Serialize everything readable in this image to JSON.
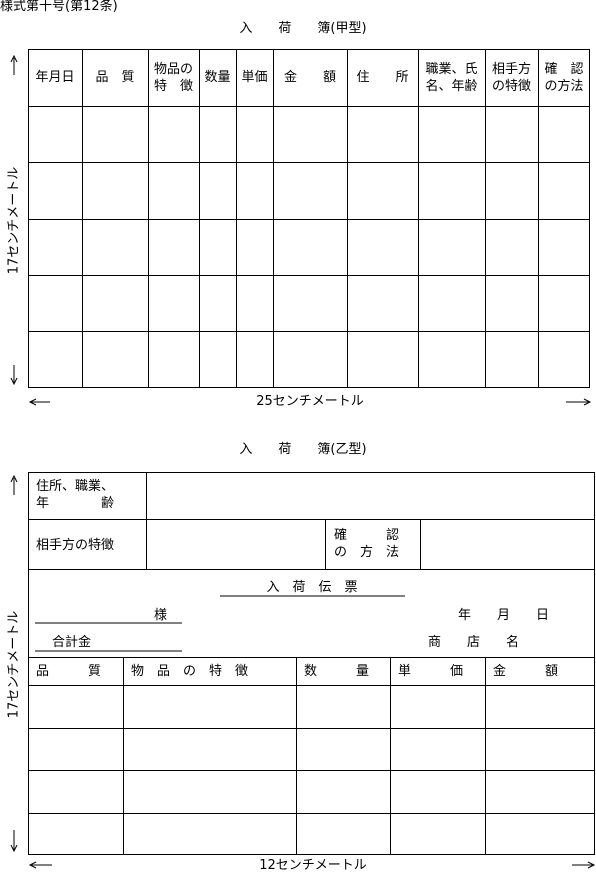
{
  "header": "様式第十号(第12条)",
  "form_a": {
    "title": "入　　荷　　簿(甲型)",
    "columns": [
      "年月日",
      "品　質",
      "物品の\n特　徴",
      "数量",
      "単価",
      "金　　額",
      "住　　所",
      "職業、氏\n名、年齢",
      "相手方\nの特徴",
      "確　認\nの方法"
    ],
    "height_label": "17センチメートル",
    "width_label": "25センチメートル"
  },
  "form_b": {
    "title": "入　　荷　　簿(乙型)",
    "address_label": "住所、職業、\n年　　　　齢",
    "feature_label": "相手方の特徴",
    "confirm_label": "確　　　認\nの　方　法",
    "slip": {
      "title": "入　荷　伝　票",
      "addressee": "様",
      "date": "年　　月　　日",
      "total": "合計金",
      "shop": "商　　店　　名"
    },
    "columns": [
      "品　　　質",
      "物　品　の　特　徴",
      "数　　　量",
      "単　　　価",
      "金　　　額"
    ],
    "height_label": "17センチメートル",
    "width_label": "12センチメートル"
  }
}
